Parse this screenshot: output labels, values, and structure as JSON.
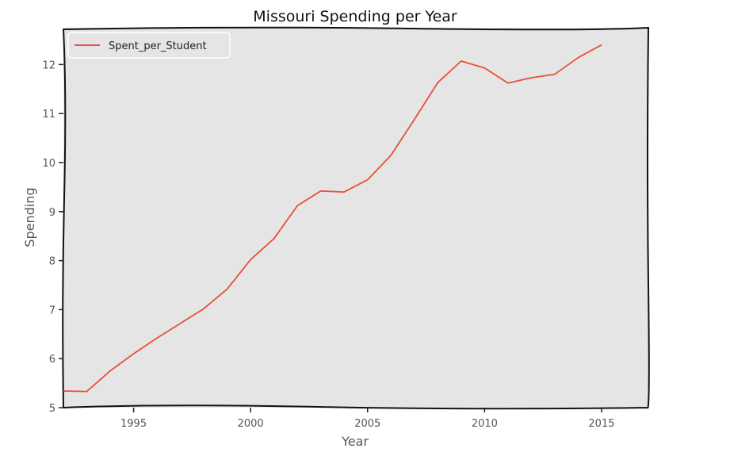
{
  "chart_data": {
    "type": "line",
    "title": "Missouri Spending per Year",
    "xlabel": "Year",
    "ylabel": "Spending",
    "xlim": [
      1992,
      2017
    ],
    "ylim": [
      5,
      12.75
    ],
    "xticks": [
      1995,
      2000,
      2005,
      2010,
      2015
    ],
    "yticks": [
      5,
      6,
      7,
      8,
      9,
      10,
      11,
      12
    ],
    "grid": false,
    "legend": "top-left",
    "background": "#e5e5e5",
    "series": [
      {
        "name": "Spent_per_Student",
        "color": "#e8503a",
        "x": [
          1992,
          1993,
          1994,
          1995,
          1996,
          1997,
          1998,
          1999,
          2000,
          2001,
          2002,
          2003,
          2004,
          2005,
          2006,
          2007,
          2008,
          2009,
          2010,
          2011,
          2012,
          2013,
          2014,
          2015
        ],
        "values": [
          5.34,
          5.33,
          5.75,
          6.1,
          6.42,
          6.72,
          7.02,
          7.42,
          8.02,
          8.45,
          9.12,
          9.42,
          9.4,
          9.65,
          10.15,
          10.88,
          11.63,
          12.07,
          11.93,
          11.62,
          11.73,
          11.8,
          12.14,
          12.4
        ]
      }
    ]
  }
}
